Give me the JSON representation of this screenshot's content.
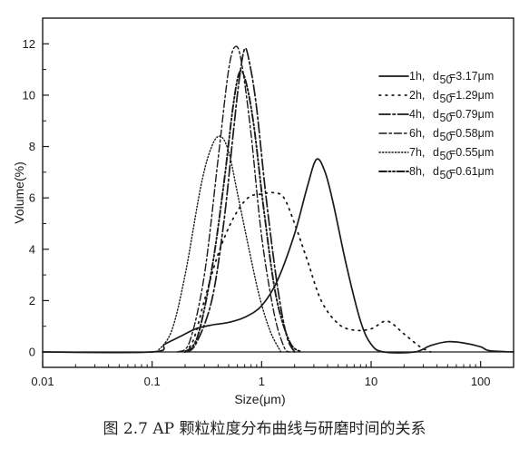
{
  "chart_data": {
    "type": "line",
    "xscale": "log",
    "xlim": [
      0.01,
      200
    ],
    "ylim": [
      -0.6,
      13
    ],
    "xlabel": "Size(μm)",
    "ylabel": "Volume(%)",
    "x_ticks": [
      {
        "value": 0.01,
        "label": "0.01"
      },
      {
        "value": 0.1,
        "label": "0.1"
      },
      {
        "value": 1,
        "label": "1"
      },
      {
        "value": 10,
        "label": "10"
      },
      {
        "value": 100,
        "label": "100"
      }
    ],
    "y_ticks": [
      {
        "value": 0,
        "label": "0"
      },
      {
        "value": 2,
        "label": "2"
      },
      {
        "value": 4,
        "label": "4"
      },
      {
        "value": 6,
        "label": "6"
      },
      {
        "value": 8,
        "label": "8"
      },
      {
        "value": 10,
        "label": "10"
      },
      {
        "value": 12,
        "label": "12"
      }
    ],
    "legend_position": "top-right",
    "series": [
      {
        "time": "1h,",
        "d50": "=3.17μm",
        "style": "solid",
        "points": [
          [
            0.01,
            0
          ],
          [
            0.1,
            0
          ],
          [
            0.13,
            0.3
          ],
          [
            0.18,
            0.6
          ],
          [
            0.25,
            0.9
          ],
          [
            0.35,
            1.05
          ],
          [
            0.5,
            1.15
          ],
          [
            0.7,
            1.35
          ],
          [
            1,
            1.8
          ],
          [
            1.4,
            2.8
          ],
          [
            2,
            4.6
          ],
          [
            2.6,
            6.4
          ],
          [
            3.17,
            7.5
          ],
          [
            3.8,
            7
          ],
          [
            4.5,
            5.8
          ],
          [
            6,
            3.3
          ],
          [
            8,
            1.2
          ],
          [
            10,
            0.3
          ],
          [
            13,
            0
          ],
          [
            25,
            0
          ],
          [
            35,
            0.25
          ],
          [
            50,
            0.4
          ],
          [
            70,
            0.35
          ],
          [
            100,
            0.2
          ],
          [
            120,
            0.05
          ],
          [
            200,
            0
          ]
        ]
      },
      {
        "time": "2h,",
        "d50": "=1.29μm",
        "style": "dot-sparse",
        "points": [
          [
            0.2,
            0
          ],
          [
            0.24,
            0.5
          ],
          [
            0.3,
            2
          ],
          [
            0.4,
            3.8
          ],
          [
            0.55,
            5.2
          ],
          [
            0.75,
            6
          ],
          [
            1,
            6.15
          ],
          [
            1.3,
            6.2
          ],
          [
            1.6,
            6
          ],
          [
            2,
            5
          ],
          [
            2.6,
            3.6
          ],
          [
            3.5,
            2
          ],
          [
            5,
            1.1
          ],
          [
            7,
            0.85
          ],
          [
            10,
            0.9
          ],
          [
            14,
            1.2
          ],
          [
            20,
            0.7
          ],
          [
            28,
            0.2
          ],
          [
            35,
            0
          ]
        ]
      },
      {
        "time": "4h,",
        "d50": "=0.79μm",
        "style": "dashdot-long",
        "points": [
          [
            0.2,
            0
          ],
          [
            0.25,
            0.3
          ],
          [
            0.35,
            2
          ],
          [
            0.45,
            5
          ],
          [
            0.55,
            8.5
          ],
          [
            0.62,
            10.5
          ],
          [
            0.7,
            11.8
          ],
          [
            0.78,
            11.2
          ],
          [
            0.9,
            9.5
          ],
          [
            1.1,
            6
          ],
          [
            1.4,
            2.5
          ],
          [
            1.7,
            0.6
          ],
          [
            2,
            0
          ]
        ]
      },
      {
        "time": "6h,",
        "d50": "=0.58μm",
        "style": "dashdot",
        "points": [
          [
            0.17,
            0
          ],
          [
            0.22,
            0.4
          ],
          [
            0.3,
            3
          ],
          [
            0.4,
            7.5
          ],
          [
            0.5,
            11
          ],
          [
            0.58,
            11.9
          ],
          [
            0.66,
            11.2
          ],
          [
            0.8,
            8.5
          ],
          [
            1,
            4.5
          ],
          [
            1.3,
            1.5
          ],
          [
            1.6,
            0.2
          ],
          [
            1.8,
            0
          ]
        ]
      },
      {
        "time": "7h,",
        "d50": "=0.55μm",
        "style": "dotted",
        "points": [
          [
            0.11,
            0
          ],
          [
            0.15,
            0.8
          ],
          [
            0.2,
            3
          ],
          [
            0.28,
            6.5
          ],
          [
            0.35,
            8
          ],
          [
            0.42,
            8.4
          ],
          [
            0.5,
            7.8
          ],
          [
            0.6,
            6.2
          ],
          [
            0.75,
            4.2
          ],
          [
            0.95,
            2.2
          ],
          [
            1.2,
            0.8
          ],
          [
            1.5,
            0
          ]
        ]
      },
      {
        "time": "8h,",
        "d50": "=0.61μm",
        "style": "dashdotdot",
        "points": [
          [
            0.2,
            0
          ],
          [
            0.26,
            0.6
          ],
          [
            0.35,
            3.2
          ],
          [
            0.45,
            6.5
          ],
          [
            0.55,
            9.6
          ],
          [
            0.63,
            10.9
          ],
          [
            0.72,
            10.5
          ],
          [
            0.85,
            8.8
          ],
          [
            1.05,
            5.5
          ],
          [
            1.35,
            2.2
          ],
          [
            1.8,
            0.4
          ],
          [
            2.3,
            0
          ]
        ]
      }
    ]
  },
  "caption": "图 2.7 AP 颗粒粒度分布曲线与研磨时间的关系"
}
